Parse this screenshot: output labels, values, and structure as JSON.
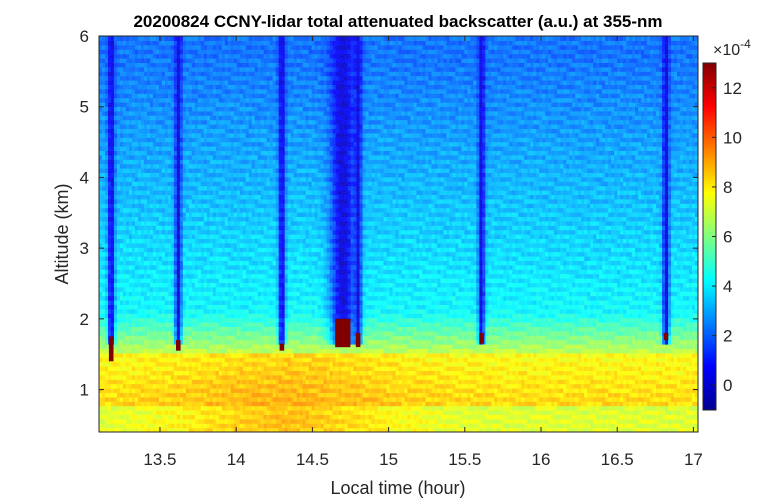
{
  "chart_data": {
    "type": "heatmap",
    "title": "20200824 CCNY-lidar total attenuated backscatter (a.u.) at 355-nm",
    "xlabel": "Local time (hour)",
    "ylabel": "Altitude (km)",
    "xlim": [
      13.1,
      17.03
    ],
    "ylim": [
      0.4,
      6
    ],
    "x_ticks": [
      "13.5",
      "14",
      "14.5",
      "15",
      "15.5",
      "16",
      "16.5",
      "17"
    ],
    "x_tick_values": [
      13.5,
      14,
      14.5,
      15,
      15.5,
      16,
      16.5,
      17
    ],
    "y_ticks": [
      "1",
      "2",
      "3",
      "4",
      "5",
      "6"
    ],
    "y_tick_values": [
      1,
      2,
      3,
      4,
      5,
      6
    ],
    "colorbar": {
      "colormap": "jet",
      "exponent_label": "×10",
      "exponent_value": "-4",
      "clim": [
        -1,
        13
      ],
      "ticks": [
        "0",
        "2",
        "4",
        "6",
        "8",
        "10",
        "12"
      ],
      "tick_values": [
        0,
        2,
        4,
        6,
        8,
        10,
        12
      ]
    },
    "features": {
      "boundary_layer_top_km": 1.75,
      "boundary_layer_max_value": 8.5,
      "free_troposphere_value": 2.2,
      "cloud_events": [
        {
          "time": 13.18,
          "cloud_base_km": 1.4,
          "cloud_top_km": 1.75
        },
        {
          "time": 13.62,
          "cloud_base_km": 1.55,
          "cloud_top_km": 1.7
        },
        {
          "time": 14.3,
          "cloud_base_km": 1.55,
          "cloud_top_km": 1.65
        },
        {
          "time": 14.7,
          "cloud_base_km": 1.6,
          "cloud_top_km": 2.0
        },
        {
          "time": 14.8,
          "cloud_base_km": 1.6,
          "cloud_top_km": 1.8
        },
        {
          "time": 15.61,
          "cloud_base_km": 1.65,
          "cloud_top_km": 1.8
        },
        {
          "time": 16.82,
          "cloud_base_km": 1.7,
          "cloud_top_km": 1.8
        }
      ]
    }
  }
}
